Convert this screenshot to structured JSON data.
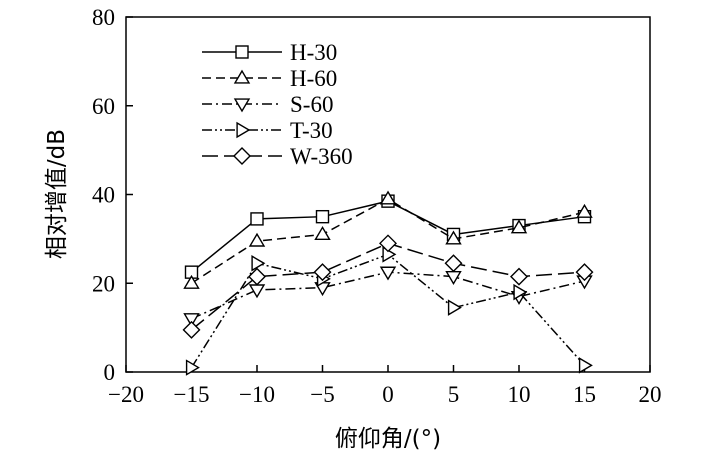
{
  "chart_data": {
    "type": "line",
    "xlabel": "俯仰角/(°)",
    "ylabel": "相对增值/dB",
    "xlim": [
      -20,
      20
    ],
    "ylim": [
      0,
      80
    ],
    "xticks": [
      -20,
      -15,
      -10,
      -5,
      0,
      5,
      10,
      15,
      20
    ],
    "yticks": [
      0,
      20,
      40,
      60,
      80
    ],
    "x_tick_labels": [
      "−20",
      "−15",
      "−10",
      "−5",
      "0",
      "5",
      "10",
      "15",
      "20"
    ],
    "y_tick_labels": [
      "0",
      "20",
      "40",
      "60",
      "80"
    ],
    "x": [
      -15,
      -10,
      -5,
      0,
      5,
      10,
      15
    ],
    "grid": false,
    "legend_position": "top-left",
    "series": [
      {
        "name": "H-30",
        "values": [
          22.5,
          34.5,
          35,
          38.5,
          31,
          33,
          35
        ],
        "marker": "square",
        "line_style": "solid"
      },
      {
        "name": "H-60",
        "values": [
          20,
          29.5,
          31,
          39,
          30,
          32.5,
          36
        ],
        "marker": "triangle-up",
        "line_style": "dashed"
      },
      {
        "name": "S-60",
        "values": [
          12,
          18.5,
          19,
          22.5,
          21.5,
          17,
          20.5
        ],
        "marker": "triangle-down",
        "line_style": "dash-dot"
      },
      {
        "name": "T-30",
        "values": [
          1,
          24.5,
          21,
          26.5,
          14.5,
          18,
          1.5
        ],
        "marker": "triangle-right",
        "line_style": "dash-dot-dot"
      },
      {
        "name": "W-360",
        "values": [
          9.5,
          21.5,
          22.5,
          29,
          24.5,
          21.5,
          22.5
        ],
        "marker": "diamond",
        "line_style": "long-dash"
      }
    ]
  }
}
